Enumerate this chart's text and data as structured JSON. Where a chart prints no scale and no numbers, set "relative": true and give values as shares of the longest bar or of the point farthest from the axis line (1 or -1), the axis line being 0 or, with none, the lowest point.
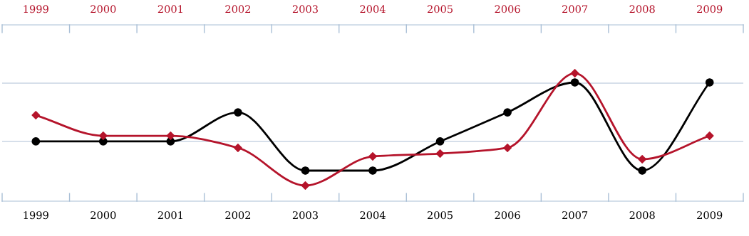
{
  "chart_data": {
    "type": "line",
    "relative": true,
    "categories": [
      "1999",
      "2000",
      "2001",
      "2002",
      "2003",
      "2004",
      "2005",
      "2006",
      "2007",
      "2008",
      "2009"
    ],
    "series": [
      {
        "color": "#000000",
        "marker": "circle",
        "values": [
          0.467,
          0.467,
          0.467,
          0.694,
          0.239,
          0.239,
          0.467,
          0.694,
          0.928,
          0.239,
          0.928
        ]
      },
      {
        "color": "#b5142b",
        "marker": "diamond",
        "values": [
          0.672,
          0.511,
          0.511,
          0.417,
          0.122,
          0.35,
          0.372,
          0.417,
          1,
          0.328,
          0.511
        ]
      }
    ],
    "ref_lines": [
      {
        "axis": "y",
        "value": 0.467,
        "color": "#c8d4e3"
      },
      {
        "axis": "y",
        "value": 0.922,
        "color": "#c8d4e3"
      }
    ],
    "grid": false,
    "legend": false,
    "line_style": "solid"
  }
}
